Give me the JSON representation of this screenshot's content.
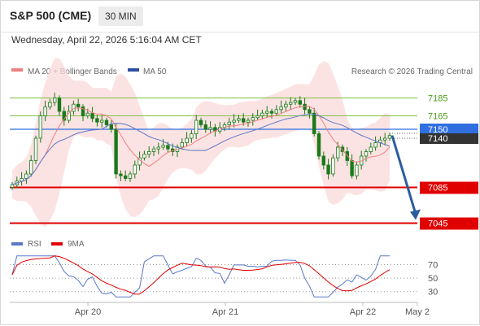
{
  "header": {
    "symbol": "S&P 500 (CME)",
    "timeframe": "30 MIN",
    "datetime": "Wednesday, April 22, 2026 5:16:04 AM CET"
  },
  "legend": {
    "ma20_label": "MA 20 + Bollinger Bands",
    "ma50_label": "MA 50",
    "credit": "Research © 2026 Trading Central",
    "rsi_label": "RSI",
    "ma9_label": "9MA"
  },
  "colors": {
    "ma20": "#f08080",
    "bollinger_fill": "#fbd9d9",
    "ma50": "#5b78c8",
    "candle": "#1a7a1a",
    "resistance": "#7fbf3f",
    "pivot": "#2f6fe0",
    "support": "#e00000",
    "arrow": "#2b5d9e",
    "current_price": "#333333",
    "rsi": "#5b78c8",
    "rsi_ma": "#e00000"
  },
  "chart_data": [
    {
      "type": "candlestick",
      "x_ticks": [
        "Apr 20",
        "Apr 21",
        "Apr 22",
        "May 2"
      ],
      "y_range": [
        7030,
        7200
      ],
      "horizontal_levels": [
        {
          "value": 7185,
          "label": "7185",
          "kind": "resistance"
        },
        {
          "value": 7165,
          "label": "7165",
          "kind": "resistance"
        },
        {
          "value": 7150,
          "label": "7150",
          "kind": "pivot"
        },
        {
          "value": 7085,
          "label": "7085",
          "kind": "support"
        },
        {
          "value": 7045,
          "label": "7045",
          "kind": "support"
        }
      ],
      "current_price": {
        "value": 7140,
        "label": "7140"
      },
      "forecast_arrow": {
        "from": 7143,
        "to": 7045
      },
      "close_series": [
        7088,
        7092,
        7095,
        7100,
        7115,
        7140,
        7165,
        7175,
        7180,
        7185,
        7170,
        7160,
        7170,
        7178,
        7175,
        7165,
        7168,
        7162,
        7158,
        7160,
        7155,
        7150,
        7100,
        7098,
        7095,
        7100,
        7110,
        7118,
        7122,
        7125,
        7128,
        7130,
        7132,
        7128,
        7125,
        7130,
        7135,
        7140,
        7145,
        7160,
        7155,
        7150,
        7152,
        7148,
        7152,
        7155,
        7158,
        7160,
        7162,
        7158,
        7160,
        7163,
        7165,
        7168,
        7170,
        7168,
        7172,
        7175,
        7178,
        7180,
        7182,
        7178,
        7172,
        7168,
        7145,
        7120,
        7110,
        7100,
        7118,
        7130,
        7125,
        7115,
        7098,
        7110,
        7120,
        7125,
        7130,
        7135,
        7138,
        7140,
        7143
      ]
    },
    {
      "type": "line",
      "title": "RSI",
      "y_ticks": [
        70,
        50,
        30
      ],
      "y_range": [
        20,
        85
      ]
    }
  ]
}
